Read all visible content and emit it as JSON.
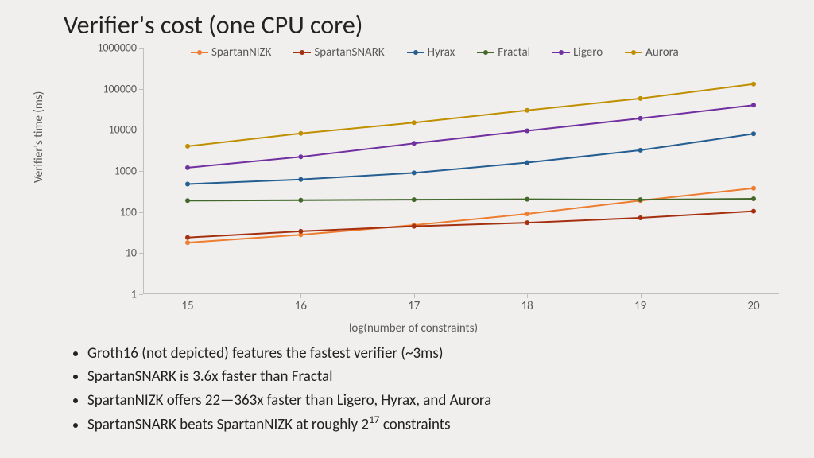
{
  "title": "Verifier's cost (one CPU core)",
  "chart": {
    "type": "line",
    "ylabel": "Verifier's time (ms)",
    "xlabel": "log(number of constraints)",
    "x_values": [
      15,
      16,
      17,
      18,
      19,
      20
    ],
    "y_scale": "log",
    "y_ticks": [
      1,
      10,
      100,
      1000,
      10000,
      100000,
      1000000
    ],
    "ylim": [
      1,
      1000000
    ],
    "background_color": "#f0efed",
    "axis_color": "#bfbfbf",
    "tick_fontsize": 14,
    "label_fontsize": 15,
    "line_width": 2,
    "marker_size": 6,
    "series": [
      {
        "name": "SpartanNIZK",
        "color": "#ed7d31",
        "values": [
          18,
          28,
          48,
          90,
          190,
          380
        ]
      },
      {
        "name": "SpartanSNARK",
        "color": "#a5300f",
        "values": [
          24,
          34,
          45,
          55,
          72,
          105
        ]
      },
      {
        "name": "Hyrax",
        "color": "#255e91",
        "values": [
          480,
          620,
          900,
          1600,
          3200,
          8000
        ]
      },
      {
        "name": "Fractal",
        "color": "#43682b",
        "values": [
          190,
          195,
          200,
          205,
          200,
          210
        ]
      },
      {
        "name": "Ligero",
        "color": "#7030a0",
        "values": [
          1200,
          2200,
          4700,
          9500,
          19000,
          40000
        ]
      },
      {
        "name": "Aurora",
        "color": "#bf8f00",
        "values": [
          4000,
          8200,
          15000,
          30000,
          58000,
          130000
        ]
      }
    ]
  },
  "bullets": [
    "Groth16 (not depicted) features the fastest verifier (~3ms)",
    "SpartanSNARK is 3.6x faster than Fractal",
    "SpartanNIZK offers 22—363x faster than Ligero, Hyrax, and Aurora",
    "SpartanSNARK beats SpartanNIZK at roughly 2^17 constraints"
  ]
}
